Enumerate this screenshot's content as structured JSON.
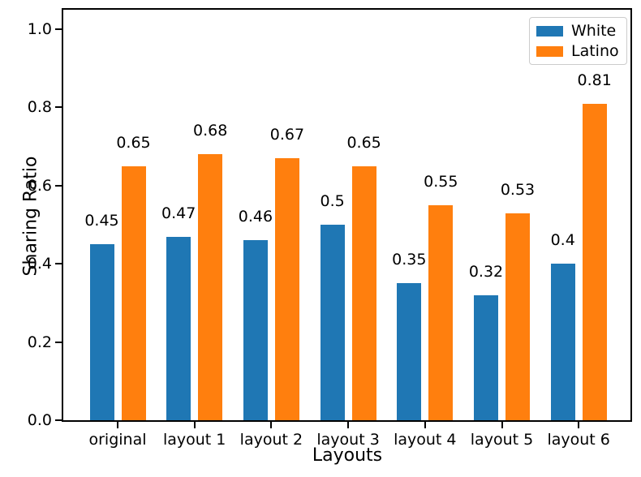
{
  "figure": {
    "background": "#ffffff",
    "text_color": "#000000",
    "spine_color": "#000000"
  },
  "chart_data": {
    "type": "bar",
    "title": "",
    "xlabel": "Layouts",
    "ylabel": "Sharing Ratio",
    "categories": [
      "original",
      "layout 1",
      "layout 2",
      "layout 3",
      "layout 4",
      "layout 5",
      "layout 6"
    ],
    "series": [
      {
        "name": "White",
        "color": "#1f77b4",
        "values": [
          0.45,
          0.47,
          0.46,
          0.5,
          0.35,
          0.32,
          0.4
        ],
        "labels": [
          "0.45",
          "0.47",
          "0.46",
          "0.5",
          "0.35",
          "0.32",
          "0.4"
        ]
      },
      {
        "name": "Latino",
        "color": "#ff7f0e",
        "values": [
          0.65,
          0.68,
          0.67,
          0.65,
          0.55,
          0.53,
          0.81
        ],
        "labels": [
          "0.65",
          "0.68",
          "0.67",
          "0.65",
          "0.55",
          "0.53",
          "0.81"
        ]
      }
    ],
    "ylim": [
      0,
      1.05
    ],
    "y_ticks": [
      {
        "value": 0.0,
        "label": "0.0"
      },
      {
        "value": 0.2,
        "label": "0.2"
      },
      {
        "value": 0.4,
        "label": "0.4"
      },
      {
        "value": 0.6,
        "label": "0.6"
      },
      {
        "value": 0.8,
        "label": "0.8"
      },
      {
        "value": 1.0,
        "label": "1.0"
      }
    ],
    "grid": false,
    "legend": {
      "position": "upper right",
      "entries": [
        "White",
        "Latino"
      ]
    }
  }
}
